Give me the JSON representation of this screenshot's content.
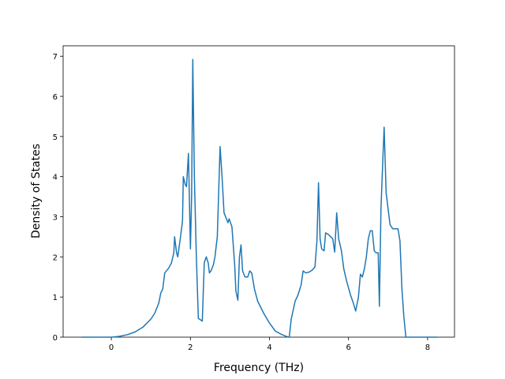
{
  "chart_data": {
    "type": "line",
    "x_label": "Frequency (THz)",
    "y_label": "Density of States",
    "xlim": [
      -1.22,
      8.68
    ],
    "ylim": [
      0,
      7.26
    ],
    "xticks": [
      0,
      2,
      4,
      6,
      8
    ],
    "yticks": [
      0,
      1,
      2,
      3,
      4,
      5,
      6,
      7
    ],
    "series": [
      {
        "color": "#1f77b4",
        "x": [
          -0.75,
          0,
          0.2,
          0.4,
          0.6,
          0.8,
          1.0,
          1.1,
          1.2,
          1.25,
          1.3,
          1.35,
          1.45,
          1.52,
          1.58,
          1.6,
          1.65,
          1.68,
          1.75,
          1.8,
          1.82,
          1.87,
          1.9,
          1.95,
          2.0,
          2.03,
          2.06,
          2.1,
          2.15,
          2.2,
          2.3,
          2.35,
          2.4,
          2.45,
          2.48,
          2.52,
          2.58,
          2.62,
          2.68,
          2.75,
          2.8,
          2.85,
          2.95,
          2.98,
          3.05,
          3.12,
          3.15,
          3.2,
          3.24,
          3.28,
          3.32,
          3.38,
          3.45,
          3.5,
          3.55,
          3.62,
          3.7,
          3.85,
          4.0,
          4.15,
          4.3,
          4.42,
          4.5,
          4.55,
          4.65,
          4.72,
          4.8,
          4.85,
          4.92,
          5.0,
          5.08,
          5.15,
          5.2,
          5.24,
          5.28,
          5.32,
          5.38,
          5.42,
          5.5,
          5.55,
          5.6,
          5.65,
          5.7,
          5.75,
          5.82,
          5.88,
          5.95,
          6.05,
          6.12,
          6.18,
          6.25,
          6.3,
          6.35,
          6.4,
          6.45,
          6.5,
          6.55,
          6.6,
          6.65,
          6.7,
          6.75,
          6.78,
          6.82,
          6.87,
          6.9,
          6.95,
          7.0,
          7.05,
          7.12,
          7.18,
          7.25,
          7.3,
          7.35,
          7.4,
          7.45,
          8.24
        ],
        "values": [
          0,
          0,
          0.02,
          0.06,
          0.13,
          0.25,
          0.45,
          0.6,
          0.85,
          1.1,
          1.2,
          1.6,
          1.72,
          1.85,
          2.1,
          2.5,
          2.1,
          2.0,
          2.5,
          2.9,
          4.0,
          3.8,
          3.75,
          4.58,
          2.2,
          3.5,
          6.92,
          4.0,
          2.0,
          0.47,
          0.4,
          1.85,
          2.0,
          1.85,
          1.6,
          1.65,
          1.8,
          2.0,
          2.5,
          4.75,
          4.0,
          3.1,
          2.85,
          2.95,
          2.75,
          1.8,
          1.15,
          0.92,
          2.0,
          2.3,
          1.65,
          1.5,
          1.5,
          1.65,
          1.6,
          1.2,
          0.9,
          0.6,
          0.35,
          0.15,
          0.07,
          0.02,
          0,
          0.45,
          0.9,
          1.05,
          1.3,
          1.65,
          1.6,
          1.62,
          1.67,
          1.75,
          2.4,
          3.85,
          2.45,
          2.2,
          2.15,
          2.6,
          2.55,
          2.5,
          2.45,
          2.12,
          3.1,
          2.45,
          2.15,
          1.7,
          1.4,
          1.05,
          0.85,
          0.65,
          1.0,
          1.57,
          1.5,
          1.7,
          2.0,
          2.45,
          2.65,
          2.65,
          2.15,
          2.1,
          2.1,
          0.77,
          3.2,
          4.5,
          5.23,
          3.6,
          3.2,
          2.8,
          2.7,
          2.7,
          2.7,
          2.4,
          1.2,
          0.5,
          0,
          0
        ]
      }
    ]
  }
}
